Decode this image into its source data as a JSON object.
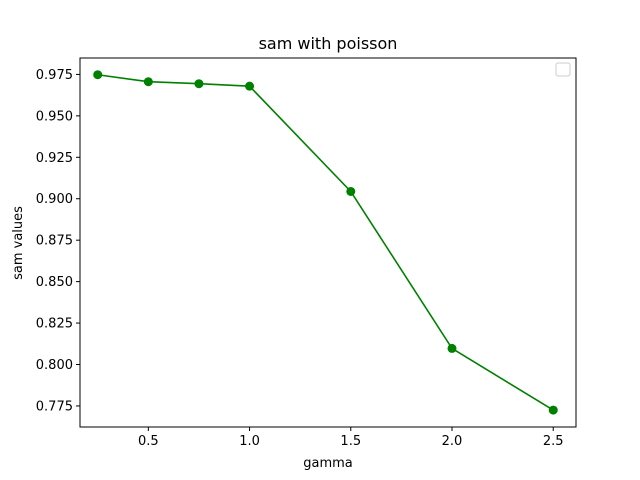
{
  "chart_data": {
    "type": "line",
    "title": "sam with poisson",
    "xlabel": "gamma",
    "ylabel": "sam values",
    "x": [
      0.25,
      0.5,
      0.75,
      1.0,
      1.5,
      2.0,
      2.5
    ],
    "series": [
      {
        "values": [
          0.9748,
          0.9706,
          0.9694,
          0.9679,
          0.9044,
          0.8097,
          0.7725
        ],
        "color": "#008000"
      }
    ],
    "xlim": [
      0.1625,
      2.6125
    ],
    "ylim": [
      0.7623,
      0.9849
    ],
    "xticks": [
      0.5,
      1.0,
      1.5,
      2.0,
      2.5
    ],
    "xtick_labels": [
      "0.5",
      "1.0",
      "1.5",
      "2.0",
      "2.5"
    ],
    "yticks": [
      0.775,
      0.8,
      0.825,
      0.85,
      0.875,
      0.9,
      0.925,
      0.95,
      0.975
    ],
    "ytick_labels": [
      "0.775",
      "0.800",
      "0.825",
      "0.850",
      "0.875",
      "0.900",
      "0.925",
      "0.950",
      "0.975"
    ],
    "grid": false,
    "legend": "upper right (empty)",
    "marker": "circle"
  }
}
